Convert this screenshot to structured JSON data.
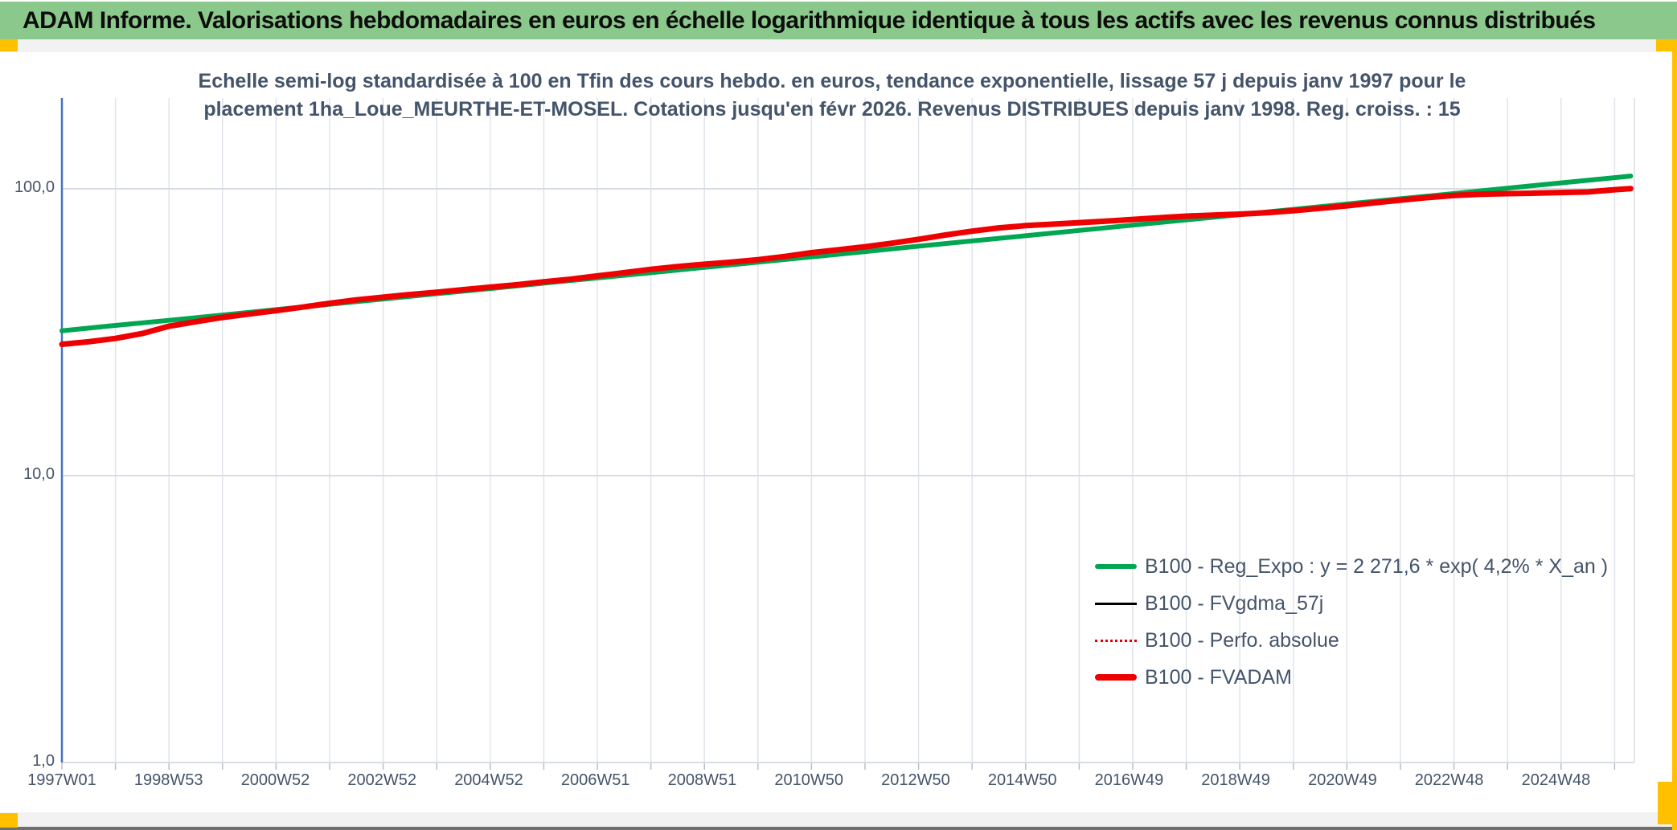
{
  "header": {
    "title": "ADAM Informe. Valorisations hebdomadaires en euros en échelle logarithmique identique à tous les actifs avec les revenus connus distribués"
  },
  "colors": {
    "header_bg": "#8BC88B",
    "marker_yellow": "#FFC000",
    "text_dark": "#44546A",
    "axis_blue": "#4472C4",
    "grid_gray": "#dfe3ea",
    "green_series": "#00A651",
    "red_series": "#EE0000",
    "black_series": "#000000"
  },
  "chart_data": {
    "type": "line",
    "title": "Echelle semi-log standardisée à 100 en Tfin des cours hebdo. en euros, tendance exponentielle, lissage 57 j depuis janv 1997 pour le placement 1ha_Loue_MEURTHE-ET-MOSEL. Cotations jusqu'en févr 2026. Revenus DISTRIBUES depuis janv 1998. Reg. croiss. : 15",
    "title_lines": [
      "Echelle semi-log standardisée à 100 en Tfin des cours hebdo. en euros, tendance exponentielle, lissage 57 j depuis janv 1997 pour le",
      "placement 1ha_Loue_MEURTHE-ET-MOSEL. Cotations jusqu'en févr 2026. Revenus DISTRIBUES depuis janv 1998. Reg. croiss. : 15"
    ],
    "y_axis": {
      "scale": "log",
      "ticks": [
        "100,0",
        "10,0",
        "1,0"
      ],
      "tick_values": [
        100,
        10,
        1
      ],
      "range": [
        1,
        130
      ],
      "grid": true
    },
    "x_axis": {
      "labels": [
        "1997W01",
        "1998W53",
        "2000W52",
        "2002W52",
        "2004W52",
        "2006W51",
        "2008W51",
        "2010W50",
        "2012W50",
        "2014W50",
        "2016W49",
        "2018W49",
        "2020W49",
        "2022W48",
        "2024W48"
      ],
      "label_interval_weeks": 104,
      "range_years": [
        1997.0,
        2026.4
      ],
      "gridline_interval_years": 1
    },
    "legend": [
      {
        "label": "B100 - Reg_Expo : y = 2 271,6 * exp( 4,2% *  X_an )",
        "color": "#00A651",
        "style": "thick"
      },
      {
        "label": "B100 - FVgdma_57j",
        "color": "#000000",
        "style": "thin"
      },
      {
        "label": "B100 - Perfo. absolue",
        "color": "#e00000",
        "style": "dotted"
      },
      {
        "label": "B100 - FVADAM",
        "color": "#EE0000",
        "style": "xthick"
      }
    ],
    "legend_position": "inside-right-lower",
    "series": [
      {
        "name": "B100 - Reg_Expo",
        "color": "#00A651",
        "width": 6,
        "points": [
          [
            1997,
            32.0
          ],
          [
            1998,
            33.4
          ],
          [
            1999,
            34.8
          ],
          [
            2000,
            36.3
          ],
          [
            2001,
            37.9
          ],
          [
            2002,
            39.6
          ],
          [
            2003,
            41.3
          ],
          [
            2004,
            43.1
          ],
          [
            2005,
            44.9
          ],
          [
            2006,
            46.9
          ],
          [
            2007,
            48.9
          ],
          [
            2008,
            51.0
          ],
          [
            2009,
            53.2
          ],
          [
            2010,
            55.5
          ],
          [
            2011,
            57.9
          ],
          [
            2012,
            60.4
          ],
          [
            2013,
            63.1
          ],
          [
            2014,
            65.8
          ],
          [
            2015,
            68.6
          ],
          [
            2016,
            71.6
          ],
          [
            2017,
            74.7
          ],
          [
            2018,
            77.9
          ],
          [
            2019,
            81.3
          ],
          [
            2020,
            84.8
          ],
          [
            2021,
            88.5
          ],
          [
            2022,
            92.3
          ],
          [
            2023,
            96.3
          ],
          [
            2024,
            100.5
          ],
          [
            2025,
            104.9
          ],
          [
            2026,
            109.4
          ],
          [
            2026.3,
            110.8
          ]
        ]
      },
      {
        "name": "B100 - FVADAM",
        "color": "#EE0000",
        "width": 7,
        "points": [
          [
            1997.0,
            28.7
          ],
          [
            1997.5,
            29.3
          ],
          [
            1998.0,
            30.1
          ],
          [
            1998.5,
            31.3
          ],
          [
            1999.0,
            33.2
          ],
          [
            1999.5,
            34.4
          ],
          [
            2000.0,
            35.6
          ],
          [
            2000.5,
            36.6
          ],
          [
            2001.0,
            37.6
          ],
          [
            2001.5,
            38.7
          ],
          [
            2002.0,
            39.9
          ],
          [
            2002.5,
            41.0
          ],
          [
            2003.0,
            41.9
          ],
          [
            2003.5,
            42.8
          ],
          [
            2004.0,
            43.6
          ],
          [
            2004.5,
            44.5
          ],
          [
            2005.0,
            45.4
          ],
          [
            2005.5,
            46.3
          ],
          [
            2006.0,
            47.4
          ],
          [
            2006.5,
            48.4
          ],
          [
            2007.0,
            49.7
          ],
          [
            2007.5,
            51.0
          ],
          [
            2008.0,
            52.4
          ],
          [
            2008.5,
            53.6
          ],
          [
            2009.0,
            54.6
          ],
          [
            2009.5,
            55.5
          ],
          [
            2010.0,
            56.6
          ],
          [
            2010.5,
            58.1
          ],
          [
            2011.0,
            59.9
          ],
          [
            2011.5,
            61.3
          ],
          [
            2012.0,
            62.8
          ],
          [
            2012.5,
            64.6
          ],
          [
            2013.0,
            66.7
          ],
          [
            2013.5,
            69.0
          ],
          [
            2014.0,
            71.2
          ],
          [
            2014.5,
            73.1
          ],
          [
            2015.0,
            74.4
          ],
          [
            2015.5,
            75.3
          ],
          [
            2016.0,
            76.2
          ],
          [
            2016.5,
            77.1
          ],
          [
            2017.0,
            78.2
          ],
          [
            2017.5,
            79.3
          ],
          [
            2018.0,
            80.3
          ],
          [
            2018.5,
            81.0
          ],
          [
            2019.0,
            81.6
          ],
          [
            2019.5,
            82.5
          ],
          [
            2020.0,
            83.9
          ],
          [
            2020.5,
            85.5
          ],
          [
            2021.0,
            87.3
          ],
          [
            2021.5,
            89.3
          ],
          [
            2022.0,
            91.3
          ],
          [
            2022.5,
            93.2
          ],
          [
            2023.0,
            94.8
          ],
          [
            2023.5,
            95.7
          ],
          [
            2024.0,
            96.2
          ],
          [
            2024.5,
            96.6
          ],
          [
            2025.0,
            97.1
          ],
          [
            2025.5,
            97.5
          ],
          [
            2026.0,
            99.3
          ],
          [
            2026.3,
            100.2
          ]
        ]
      }
    ]
  }
}
